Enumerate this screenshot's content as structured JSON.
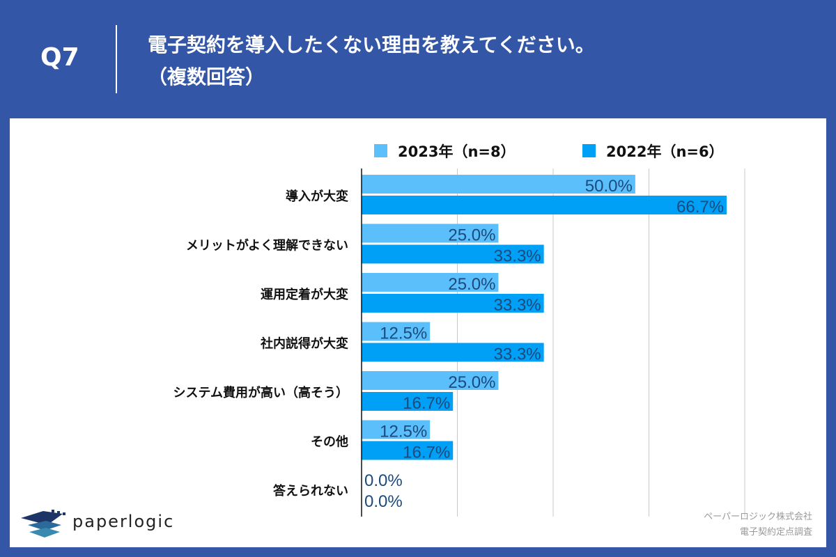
{
  "header": {
    "question": "Q7",
    "title_line1": "電子契約を導入したくない理由を教えてください。",
    "title_line2": "（複数回答）"
  },
  "credit": {
    "line1": "ペーパーロジック株式会社",
    "line2": "電子契約定点調査"
  },
  "logo": {
    "text": "paperlogic"
  },
  "colors": {
    "background": "#3456a6",
    "series_2023": "#5bbffc",
    "series_2022": "#00a0f6",
    "data_label": "#1b4a7c"
  },
  "chart_data": {
    "type": "bar",
    "orientation": "horizontal",
    "categories": [
      "導入が大変",
      "メリットがよく理解できない",
      "運用定着が大変",
      "社内説得が大変",
      "システム費用が高い（高そう）",
      "その他",
      "答えられない"
    ],
    "series": [
      {
        "name": "2023年（n=8）",
        "values": [
          50.0,
          25.0,
          25.0,
          12.5,
          25.0,
          12.5,
          0.0
        ],
        "labels": [
          "50.0%",
          "25.0%",
          "25.0%",
          "12.5%",
          "25.0%",
          "12.5%",
          "0.0%"
        ]
      },
      {
        "name": "2022年（n=6）",
        "values": [
          66.7,
          33.3,
          33.3,
          33.3,
          16.7,
          16.7,
          0.0
        ],
        "labels": [
          "66.7%",
          "33.3%",
          "33.3%",
          "33.3%",
          "16.7%",
          "16.7%",
          "0.0%"
        ]
      }
    ],
    "xlim": [
      0,
      70
    ],
    "grid": true,
    "legend_position": "top"
  }
}
